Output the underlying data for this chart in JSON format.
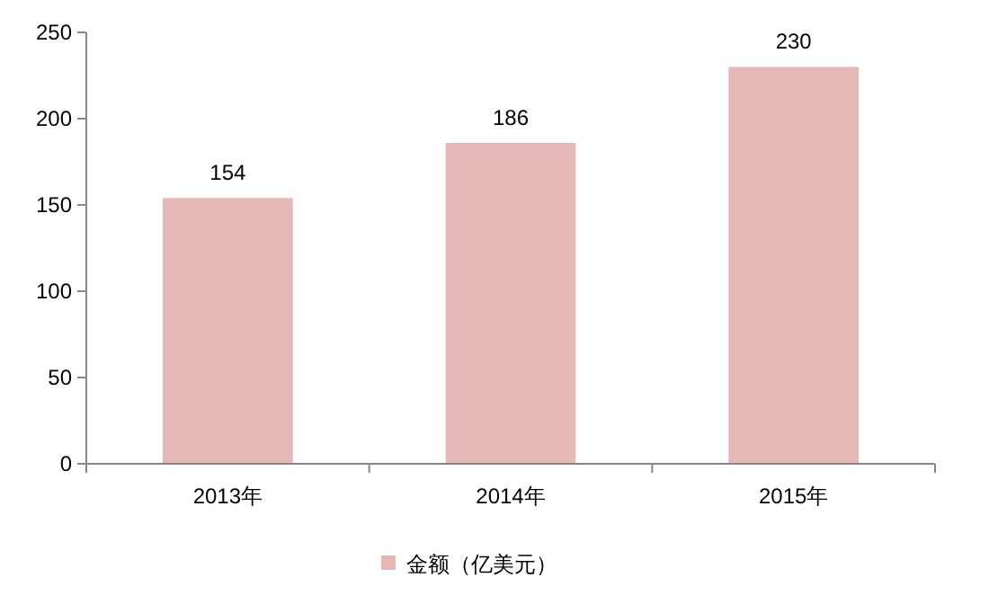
{
  "chart_data": {
    "type": "bar",
    "categories": [
      "2013年",
      "2014年",
      "2015年"
    ],
    "series": [
      {
        "name": "金额（亿美元）",
        "color": "#e6b9b8",
        "values": [
          154,
          186,
          230
        ]
      }
    ],
    "ylim": [
      0,
      250
    ],
    "yticks": [
      0,
      50,
      100,
      150,
      200,
      250
    ],
    "data_labels": true,
    "legend": "bottom",
    "grid": false
  }
}
